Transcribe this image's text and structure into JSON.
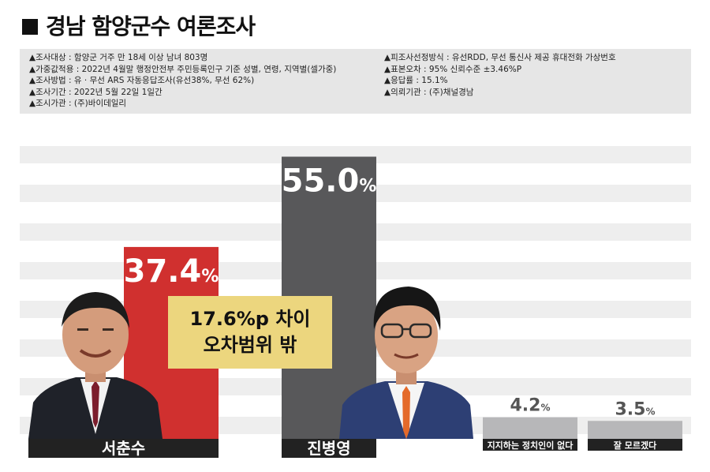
{
  "title": "경남 함양군수 여론조사",
  "survey_info_left": [
    "▲조사대상 : 함양군 거주 만 18세 이상 남녀 803명",
    "▲가중값적용 : 2022년 4월말 행정안전부 주민등록인구 기준 성별, 연령, 지역별(셀가중)",
    "▲조사방법 : 유 · 무선 ARS 자동응답조사(유선38%, 무선 62%)",
    "▲조사기간 : 2022년 5월 22일 1일간",
    "▲조시가관 : (주)바이데일리"
  ],
  "survey_info_right": [
    "▲피조사선정방식 : 유선RDD, 무선 통신사 제공 휴대전화 가상번호",
    "▲표본오차 : 95% 신뢰수준 ±3.46%P",
    "▲응답률 : 15.1%",
    "▲의뢰기관 : (주)채널경남"
  ],
  "callout": {
    "line1": "17.6%p 차이",
    "line2": "오차범위 밖"
  },
  "colors": {
    "red": "#d0302f",
    "dark": "#58585a",
    "light": "#b7b7b9",
    "label_bg": "#222222"
  },
  "chart_data": {
    "type": "bar",
    "categories": [
      "서춘수",
      "진병영",
      "지지하는 정치인이 없다",
      "잘 모르겠다"
    ],
    "values": [
      37.4,
      55.0,
      4.2,
      3.5
    ],
    "unit": "%",
    "bar_colors": [
      "#d0302f",
      "#58585a",
      "#b7b7b9",
      "#b7b7b9"
    ],
    "ylim": [
      0,
      60
    ],
    "grid": true
  }
}
